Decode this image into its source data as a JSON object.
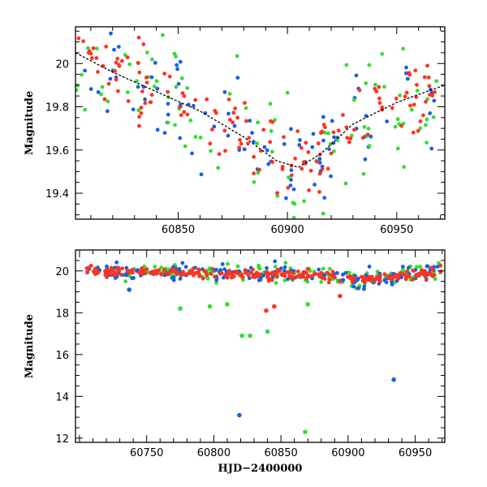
{
  "colors": {
    "blue": "#1a5fe0",
    "green": "#33dd33",
    "red": "#ff3322",
    "model": "#000000"
  },
  "chart_data": [
    {
      "type": "scatter",
      "panel": "top",
      "title": "",
      "xlabel": "",
      "ylabel": "Magnitude",
      "xlim": [
        60803,
        60972
      ],
      "ylim": [
        20.17,
        19.28
      ],
      "y_inverted": true,
      "xticks": [
        60850,
        60900,
        60950
      ],
      "xtick_labels": [
        "60850",
        "60900",
        "60950"
      ],
      "yticks": [
        19.4,
        19.6,
        19.8,
        20.0
      ],
      "ytick_labels": [
        "19.4",
        "19.6",
        "19.8",
        "20"
      ],
      "model_curve": {
        "name": "model fit",
        "x": [
          60803,
          60820,
          60840,
          60860,
          60880,
          60895,
          60905,
          60915,
          60930,
          60950,
          60972
        ],
        "y": [
          20.05,
          19.96,
          19.87,
          19.78,
          19.66,
          19.55,
          19.52,
          19.58,
          19.72,
          19.82,
          19.9
        ]
      },
      "series": [
        {
          "name": "blue",
          "color_key": "blue",
          "base_sigma": 0.12,
          "err": 0.16
        },
        {
          "name": "green",
          "color_key": "green",
          "base_sigma": 0.14,
          "err": 0.19
        },
        {
          "name": "red",
          "color_key": "red",
          "base_sigma": 0.08,
          "err": 0.11
        }
      ]
    },
    {
      "type": "scatter",
      "panel": "bottom",
      "title": "",
      "xlabel": "HJD−2400000",
      "ylabel": "Magnitude",
      "xlim": [
        60697,
        60972
      ],
      "ylim": [
        21.0,
        11.8
      ],
      "y_inverted": true,
      "xticks": [
        60750,
        60800,
        60850,
        60900,
        60950
      ],
      "xtick_labels": [
        "60750",
        "60800",
        "60850",
        "60900",
        "60950"
      ],
      "yticks": [
        12,
        14,
        16,
        18,
        20
      ],
      "ytick_labels": [
        "12",
        "14",
        "16",
        "18",
        "20"
      ],
      "outliers": [
        {
          "series": "blue",
          "x": 60819,
          "y": 13.1,
          "err": 0.3
        },
        {
          "series": "green",
          "x": 60868,
          "y": 12.3,
          "err": 0.2
        },
        {
          "series": "blue",
          "x": 60934,
          "y": 14.8,
          "err": 0.2
        },
        {
          "series": "green",
          "x": 60821,
          "y": 16.9,
          "err": 0.1
        },
        {
          "series": "green",
          "x": 60827,
          "y": 16.9,
          "err": 0.1
        },
        {
          "series": "green",
          "x": 60840,
          "y": 17.1,
          "err": 0.1
        },
        {
          "series": "red",
          "x": 60839,
          "y": 18.1,
          "err": 0.3
        },
        {
          "series": "red",
          "x": 60845,
          "y": 18.3,
          "err": 0.3
        },
        {
          "series": "green",
          "x": 60775,
          "y": 18.2,
          "err": 0.2
        },
        {
          "series": "green",
          "x": 60797,
          "y": 18.3,
          "err": 0.2
        },
        {
          "series": "green",
          "x": 60810,
          "y": 18.4,
          "err": 0.2
        },
        {
          "series": "green",
          "x": 60870,
          "y": 18.4,
          "err": 0.2
        },
        {
          "series": "blue",
          "x": 60737,
          "y": 19.1,
          "err": 0.2
        },
        {
          "series": "red",
          "x": 60894,
          "y": 18.8,
          "err": 0.2
        }
      ],
      "series": [
        {
          "name": "blue",
          "color_key": "blue",
          "x_range": [
            60705,
            60970
          ]
        },
        {
          "name": "green",
          "color_key": "green",
          "x_range": [
            60730,
            60970
          ]
        },
        {
          "name": "red",
          "color_key": "red",
          "x_range": [
            60705,
            60970
          ]
        }
      ]
    }
  ]
}
